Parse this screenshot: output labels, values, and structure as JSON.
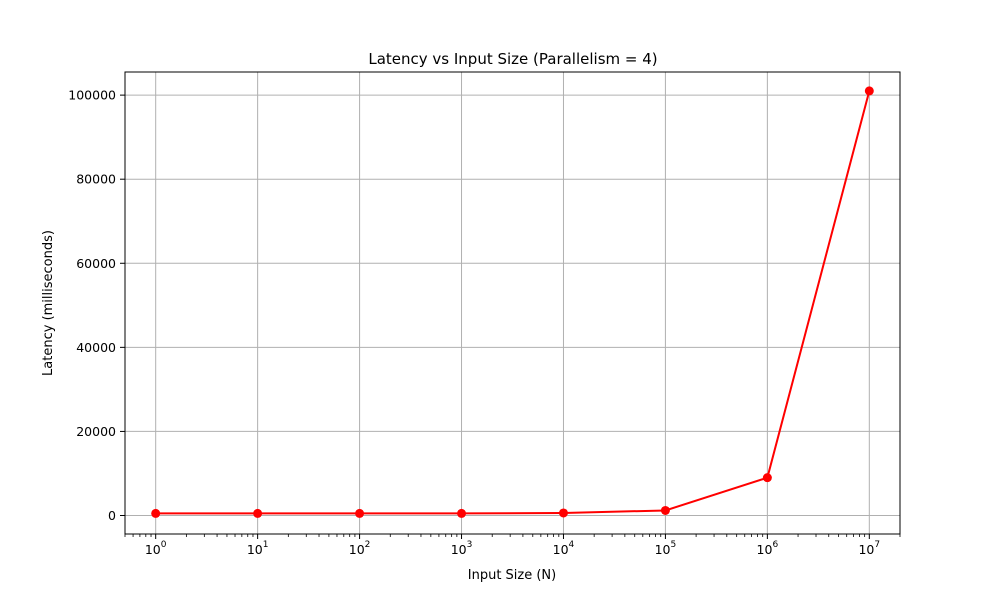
{
  "chart_data": {
    "type": "line",
    "title": "Latency vs Input Size (Parallelism = 4)",
    "xlabel": "Input Size (N)",
    "ylabel": "Latency (milliseconds)",
    "x_scale": "log",
    "x_tick_base": "10",
    "x_ticks": [
      1,
      10,
      100,
      1000,
      10000,
      100000,
      1000000,
      10000000
    ],
    "x_tick_exponents": [
      "0",
      "1",
      "2",
      "3",
      "4",
      "5",
      "6",
      "7"
    ],
    "y_ticks": [
      0,
      20000,
      40000,
      60000,
      80000,
      100000
    ],
    "y_tick_labels": [
      "0",
      "20000",
      "40000",
      "60000",
      "80000",
      "100000"
    ],
    "xlim": [
      0.5,
      20000000
    ],
    "ylim": [
      -4400,
      105500
    ],
    "grid": true,
    "series": [
      {
        "color": "#ff0000",
        "x": [
          1,
          10,
          100,
          1000,
          10000,
          100000,
          1000000,
          10000000
        ],
        "y": [
          500,
          500,
          500,
          500,
          600,
          1200,
          9000,
          101000
        ]
      }
    ]
  }
}
